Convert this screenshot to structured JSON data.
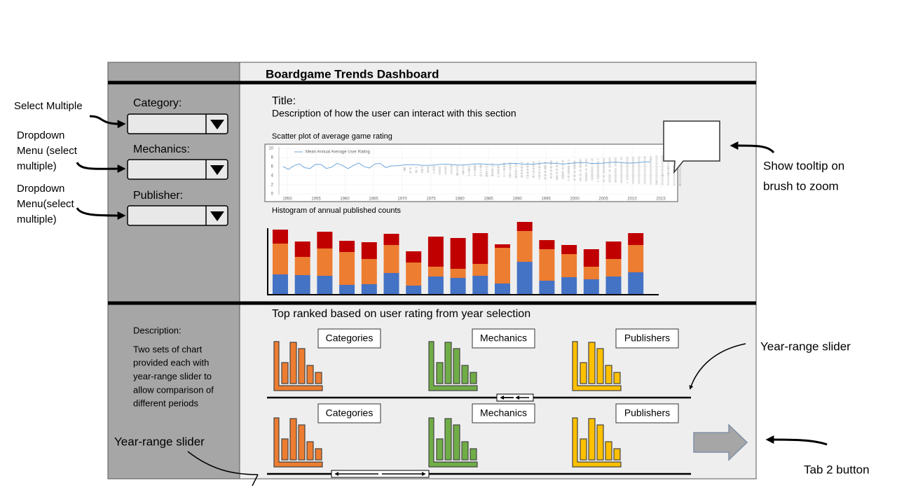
{
  "header": {
    "title": "Boardgame Trends Dashboard"
  },
  "annotations": {
    "select_multiple": "Select Multiple",
    "dropdown_1": [
      "Dropdown",
      "Menu (select",
      "multiple)"
    ],
    "dropdown_2": [
      "Dropdown",
      "Menu(select",
      "multiple)"
    ],
    "tooltip": [
      "Show tooltip on",
      "brush to zoom"
    ],
    "slider_1": "Year-range slider",
    "slider_2": "Year-range slider",
    "tab_button": "Tab 2 button"
  },
  "sidebar": {
    "filters": [
      {
        "label": "Category:"
      },
      {
        "label": "Mechanics:"
      },
      {
        "label": "Publisher:"
      }
    ],
    "description_title": "Description:",
    "description": [
      "Two sets of chart",
      "provided each with",
      "year-range slider to",
      "allow comparison of",
      "different periods"
    ]
  },
  "section1": {
    "title": "Title:",
    "description": "Description of how the user can interact with this section",
    "scatter": {
      "caption": "Scatter plot of average game rating",
      "legend": "Mean Annual Average User Rating",
      "yticks": [
        10,
        8,
        6,
        4,
        2,
        0
      ],
      "xticks": [
        1950,
        1955,
        1960,
        1965,
        1970,
        1975,
        1980,
        1985,
        1990,
        1995,
        2000,
        2005,
        2010,
        2015
      ]
    },
    "histogram": {
      "caption": "Histogram of annual published counts",
      "colors": [
        "#4472c4",
        "#ed7d31",
        "#c00000"
      ],
      "stacks": [
        [
          28,
          44,
          20
        ],
        [
          27,
          26,
          22
        ],
        [
          26,
          39,
          24
        ],
        [
          13,
          47,
          16
        ],
        [
          14,
          36,
          24
        ],
        [
          30,
          40,
          16
        ],
        [
          12,
          33,
          16
        ],
        [
          25,
          14,
          43
        ],
        [
          23,
          13,
          44
        ],
        [
          26,
          17,
          44
        ],
        [
          15,
          51,
          5
        ],
        [
          46,
          44,
          13
        ],
        [
          19,
          45,
          13
        ],
        [
          24,
          33,
          13
        ],
        [
          21,
          18,
          25
        ],
        [
          25,
          25,
          25
        ],
        [
          31,
          39,
          17
        ]
      ]
    }
  },
  "section2": {
    "title": "Top ranked based on user rating from year selection",
    "rows": [
      {
        "labels": [
          "Categories",
          "Mechanics",
          "Publishers"
        ]
      },
      {
        "labels": [
          "Categories",
          "Mechanics",
          "Publishers"
        ]
      }
    ]
  }
}
